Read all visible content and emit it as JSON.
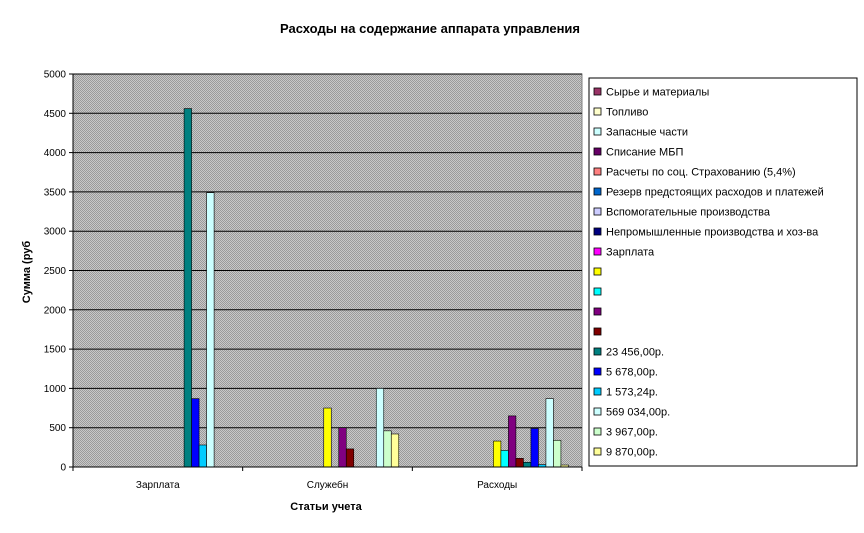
{
  "chart_data": {
    "type": "bar",
    "title": "Расходы на содержание аппарата управления",
    "xlabel": "Статьи учета",
    "ylabel": "Сумма (руб",
    "ylim": [
      0,
      5000
    ],
    "yticks": [
      0,
      500,
      1000,
      1500,
      2000,
      2500,
      3000,
      3500,
      4000,
      4500,
      5000
    ],
    "grid": true,
    "legend_position": "right",
    "categories": [
      "Зарплата",
      "Служебн",
      "Расходы"
    ],
    "series": [
      {
        "name": "Сырье и материалы",
        "color": "#993366",
        "values": [
          0,
          0,
          0
        ]
      },
      {
        "name": "Топливо",
        "color": "#FFFFCC",
        "values": [
          0,
          0,
          0
        ]
      },
      {
        "name": "Запасные части",
        "color": "#CCFFFF",
        "values": [
          0,
          0,
          0
        ]
      },
      {
        "name": "Списание МБП",
        "color": "#660066",
        "values": [
          0,
          0,
          0
        ]
      },
      {
        "name": "Расчеты по соц. Страхованию (5,4%)",
        "color": "#FF8080",
        "values": [
          0,
          0,
          0
        ]
      },
      {
        "name": "Резерв предстоящих расходов и платежей",
        "color": "#0066CC",
        "values": [
          0,
          0,
          0
        ]
      },
      {
        "name": "Вспомогательные производства",
        "color": "#CCCCFF",
        "values": [
          0,
          0,
          0
        ]
      },
      {
        "name": "Непромышленные производства и хоз-ва",
        "color": "#000080",
        "values": [
          0,
          0,
          0
        ]
      },
      {
        "name": "Зарплата",
        "color": "#FF00FF",
        "values": [
          0,
          0,
          0
        ]
      },
      {
        "name": "",
        "color": "#FFFF00",
        "values": [
          0,
          750,
          330
        ]
      },
      {
        "name": "",
        "color": "#00FFFF",
        "values": [
          0,
          0,
          210
        ]
      },
      {
        "name": "",
        "color": "#800080",
        "values": [
          0,
          500,
          650
        ]
      },
      {
        "name": "",
        "color": "#800000",
        "values": [
          0,
          230,
          110
        ]
      },
      {
        "name": "23 456,00р.",
        "color": "#008080",
        "values": [
          4560,
          0,
          60
        ]
      },
      {
        "name": "5 678,00р.",
        "color": "#0000FF",
        "values": [
          870,
          0,
          490
        ]
      },
      {
        "name": "1 573,24р.",
        "color": "#00CCFF",
        "values": [
          280,
          0,
          30
        ]
      },
      {
        "name": "569 034,00р.",
        "color": "#CCFFFF",
        "values": [
          3490,
          1000,
          870
        ]
      },
      {
        "name": "3 967,00р.",
        "color": "#CCFFCC",
        "values": [
          0,
          460,
          340
        ]
      },
      {
        "name": "9 870,00р.",
        "color": "#FFFF99",
        "values": [
          0,
          420,
          25
        ]
      }
    ]
  }
}
